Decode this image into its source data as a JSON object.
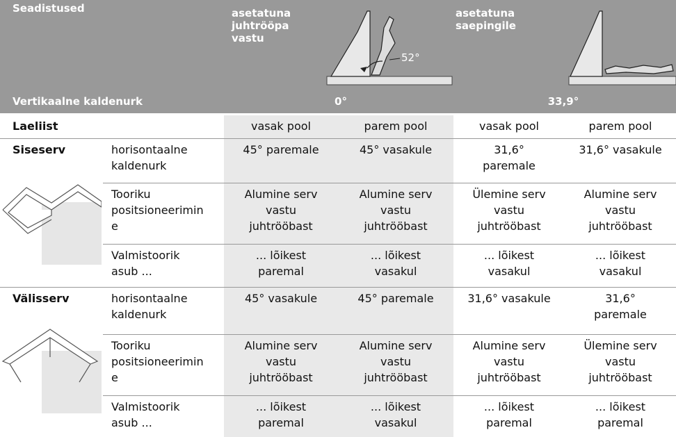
{
  "header": {
    "title": "Seadistused",
    "row_label": "Vertikaalne kaldenurk",
    "group_1": {
      "label": "asetatuna\njuhtrööpa\nvastu",
      "angle_annotation": "52°",
      "value": "0°"
    },
    "group_2": {
      "label": "asetatuna\nsaepingile",
      "value": "33,9°"
    }
  },
  "table": {
    "header": [
      "Laeliist",
      "vasak pool",
      "parem pool",
      "vasak pool",
      "parem pool"
    ],
    "sections": [
      {
        "name": "Siseserv",
        "rows": [
          [
            "horisontaalne\nkaldenurk",
            "45° paremale",
            "45° vasakule",
            "31,6°\nparemale",
            "31,6° vasakule"
          ],
          [
            "Tooriku\npositsioneerimin\ne",
            "Alumine serv\nvastu\njuhtrööbast",
            "Alumine serv\nvastu\njuhtrööbast",
            "Ülemine serv\nvastu\njuhtrööbast",
            "Alumine serv\nvastu\njuhtrööbast"
          ],
          [
            "Valmistoorik\nasub ...",
            "... lõikest\nparemal",
            "... lõikest\nvasakul",
            "... lõikest\nvasakul",
            "... lõikest\nvasakul"
          ]
        ]
      },
      {
        "name": "Välisserv",
        "rows": [
          [
            "horisontaalne\nkaldenurk",
            "45° vasakule",
            "45° paremale",
            "31,6° vasakule",
            "31,6°\nparemale"
          ],
          [
            "Tooriku\npositsioneerimin\ne",
            "Alumine serv\nvastu\njuhtrööbast",
            "Alumine serv\nvastu\njuhtrööbast",
            "Alumine serv\nvastu\njuhtrööbast",
            "Ülemine serv\nvastu\njuhtrööbast"
          ],
          [
            "Valmistoorik\nasub ...",
            "... lõikest\nparemal",
            "... lõikest\nvasakul",
            "... lõikest\nparemal",
            "... lõikest\nparemal"
          ]
        ]
      }
    ]
  }
}
